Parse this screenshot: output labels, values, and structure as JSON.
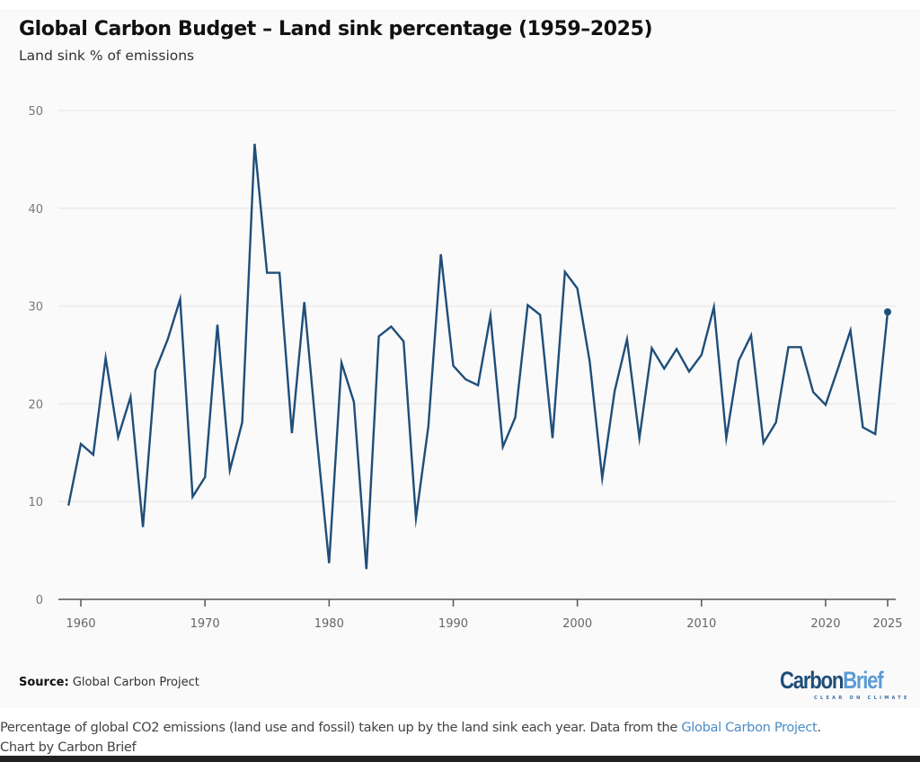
{
  "header": {
    "title": "Global Carbon Budget – Land sink percentage (1959–2025)",
    "subtitle": "Land sink % of emissions"
  },
  "footer": {
    "source_label": "Source:",
    "source_text": " Global Carbon Project",
    "logo_word_1": "Carbon",
    "logo_word_2": "Brief",
    "logo_tagline": "CLEAR ON CLIMATE"
  },
  "caption": {
    "text_before_link": "Percentage of global CO2 emissions (land use and fossil) taken up by the land sink each year. Data from the ",
    "link_text": "Global Carbon Project",
    "text_after_link": ".",
    "line2": "Chart by Carbon Brief"
  },
  "colors": {
    "line": "#1f4e79",
    "grid": "#ebebeb",
    "axis": "#555555",
    "link": "#4a8cc7"
  },
  "chart_data": {
    "type": "line",
    "title": "Global Carbon Budget – Land sink percentage (1959–2025)",
    "subtitle": "Land sink % of emissions",
    "xlabel": "",
    "ylabel": "Land sink % of emissions",
    "xlim": [
      1959,
      2025
    ],
    "ylim": [
      0,
      50
    ],
    "yticks": [
      0,
      10,
      20,
      30,
      40,
      50
    ],
    "xticks": [
      1960,
      1970,
      1980,
      1990,
      2000,
      2010,
      2020,
      2025
    ],
    "grid": "horizontal",
    "legend": "none",
    "end_marker": true,
    "series": [
      {
        "name": "Land sink %",
        "x": [
          1959,
          1960,
          1961,
          1962,
          1963,
          1964,
          1965,
          1966,
          1967,
          1968,
          1969,
          1970,
          1971,
          1972,
          1973,
          1974,
          1975,
          1976,
          1977,
          1978,
          1979,
          1980,
          1981,
          1982,
          1983,
          1984,
          1985,
          1986,
          1987,
          1988,
          1989,
          1990,
          1991,
          1992,
          1993,
          1994,
          1995,
          1996,
          1997,
          1998,
          1999,
          2000,
          2001,
          2002,
          2003,
          2004,
          2005,
          2006,
          2007,
          2008,
          2009,
          2010,
          2011,
          2012,
          2013,
          2014,
          2015,
          2016,
          2017,
          2018,
          2019,
          2020,
          2021,
          2022,
          2023,
          2024,
          2025
        ],
        "values": [
          9.6,
          15.9,
          14.8,
          24.7,
          16.6,
          20.7,
          7.4,
          23.4,
          26.6,
          30.7,
          10.5,
          12.5,
          28.1,
          13.2,
          18.1,
          46.6,
          33.4,
          33.4,
          17.0,
          30.4,
          16.6,
          3.7,
          24.2,
          20.2,
          3.1,
          26.9,
          27.9,
          26.4,
          8.3,
          17.7,
          35.3,
          23.9,
          22.5,
          21.9,
          29.0,
          15.6,
          18.6,
          30.1,
          29.1,
          16.5,
          33.5,
          31.8,
          24.3,
          12.4,
          21.3,
          26.6,
          16.5,
          25.7,
          23.6,
          25.6,
          23.3,
          25.0,
          29.9,
          16.5,
          24.4,
          27.0,
          16.0,
          18.1,
          25.8,
          25.8,
          21.2,
          19.9,
          23.6,
          27.5,
          17.6,
          16.9,
          29.4
        ]
      }
    ]
  }
}
